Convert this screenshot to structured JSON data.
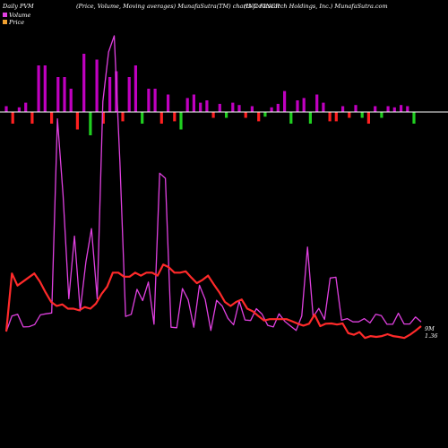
{
  "header": {
    "left_title": "Daily PVM",
    "center_title": "(Price, Volume, Moving averages) MunafaSutra(TM) charts for INCR",
    "right_title": "(INC Research Holdings, Inc.) MunafaSutra.com"
  },
  "legend": {
    "items": [
      {
        "label": "Volume",
        "color": "#e040e0"
      },
      {
        "label": "Price",
        "color": "#f0a030"
      }
    ]
  },
  "last_value_label": {
    "line1": "9M",
    "line2": "1.36"
  },
  "colors": {
    "background": "#000000",
    "volume_profile": "#e040e0",
    "price": "#ff2a2a",
    "volume_up": "#c000c0",
    "volume_down_green": "#20d020",
    "volume_down_red": "#ff2020",
    "baseline": "#ffffff"
  },
  "chart_data": {
    "type": "line",
    "title": "",
    "xlabel": "",
    "ylabel": "",
    "grid": false,
    "legend_position": "top-left",
    "series": [
      {
        "name": "Volume",
        "values": [
          1.0,
          1.58,
          1.64,
          1.17,
          1.18,
          1.26,
          1.62,
          1.66,
          1.69,
          8.91,
          6.07,
          2.22,
          4.55,
          1.77,
          3.57,
          4.83,
          2.22,
          9.56,
          11.4,
          12.0,
          7.32,
          1.56,
          1.64,
          2.57,
          2.15,
          2.84,
          1.27,
          6.89,
          6.7,
          1.16,
          1.14,
          2.6,
          2.18,
          1.16,
          2.72,
          2.19,
          1.04,
          2.16,
          1.95,
          1.49,
          1.25,
          2.13,
          1.43,
          1.41,
          1.85,
          1.65,
          1.23,
          1.17,
          1.66,
          1.38,
          1.21,
          1.04,
          1.58,
          4.14,
          1.55,
          1.86,
          1.45,
          2.99,
          3.02,
          1.42,
          1.48,
          1.36,
          1.36,
          1.48,
          1.32,
          1.64,
          1.59,
          1.27,
          1.27,
          1.68,
          1.28,
          1.28,
          1.54,
          1.36
        ]
      },
      {
        "name": "Price",
        "values": [
          1.0,
          3.16,
          2.71,
          2.86,
          3.01,
          3.16,
          2.86,
          2.46,
          2.1,
          1.95,
          2.01,
          1.85,
          1.85,
          1.79,
          1.91,
          1.85,
          2.04,
          2.4,
          2.67,
          3.19,
          3.19,
          3.04,
          3.04,
          3.19,
          3.08,
          3.19,
          3.19,
          3.08,
          3.49,
          3.39,
          3.19,
          3.19,
          3.24,
          3.01,
          2.8,
          2.92,
          3.08,
          2.76,
          2.46,
          2.1,
          1.95,
          2.1,
          2.19,
          1.85,
          1.75,
          1.57,
          1.41,
          1.46,
          1.46,
          1.46,
          1.46,
          1.38,
          1.29,
          1.22,
          1.29,
          1.63,
          1.2,
          1.29,
          1.3,
          1.26,
          1.3,
          0.94,
          0.88,
          0.98,
          0.76,
          0.83,
          0.8,
          0.83,
          0.9,
          0.83,
          0.8,
          0.76,
          0.88,
          1.03,
          1.2
        ]
      }
    ],
    "volume_bars": {
      "values": [
        0.5,
        -1.0,
        0.4,
        0.8,
        -1.0,
        4.0,
        4.0,
        -1.0,
        3.0,
        3.0,
        2.0,
        -1.5,
        5.0,
        -2.0,
        4.5,
        -1.0,
        3.0,
        3.5,
        -0.8,
        3.0,
        4.0,
        -1.0,
        2.0,
        2.0,
        -1.0,
        1.5,
        -0.8,
        -1.5,
        1.2,
        1.5,
        0.8,
        1.0,
        -0.5,
        0.7,
        -0.5,
        0.8,
        0.6,
        -0.5,
        0.5,
        -0.8,
        -0.4,
        0.4,
        0.7,
        1.8,
        -1.0,
        1.0,
        1.2,
        -1.0,
        1.5,
        0.8,
        -0.8,
        -0.8,
        0.5,
        -0.5,
        0.6,
        -0.5,
        -1.0,
        0.5,
        -0.5,
        0.5,
        0.4,
        0.6,
        0.5,
        -1.0
      ],
      "colors": [
        "m",
        "r",
        "m",
        "m",
        "r",
        "m",
        "m",
        "r",
        "m",
        "m",
        "m",
        "r",
        "m",
        "g",
        "m",
        "r",
        "m",
        "m",
        "r",
        "m",
        "m",
        "g",
        "m",
        "m",
        "r",
        "m",
        "r",
        "g",
        "m",
        "m",
        "m",
        "m",
        "r",
        "m",
        "g",
        "m",
        "m",
        "r",
        "m",
        "r",
        "g",
        "m",
        "m",
        "m",
        "g",
        "m",
        "m",
        "g",
        "m",
        "m",
        "r",
        "r",
        "m",
        "r",
        "m",
        "g",
        "r",
        "m",
        "g",
        "m",
        "m",
        "m",
        "m",
        "g"
      ]
    }
  }
}
